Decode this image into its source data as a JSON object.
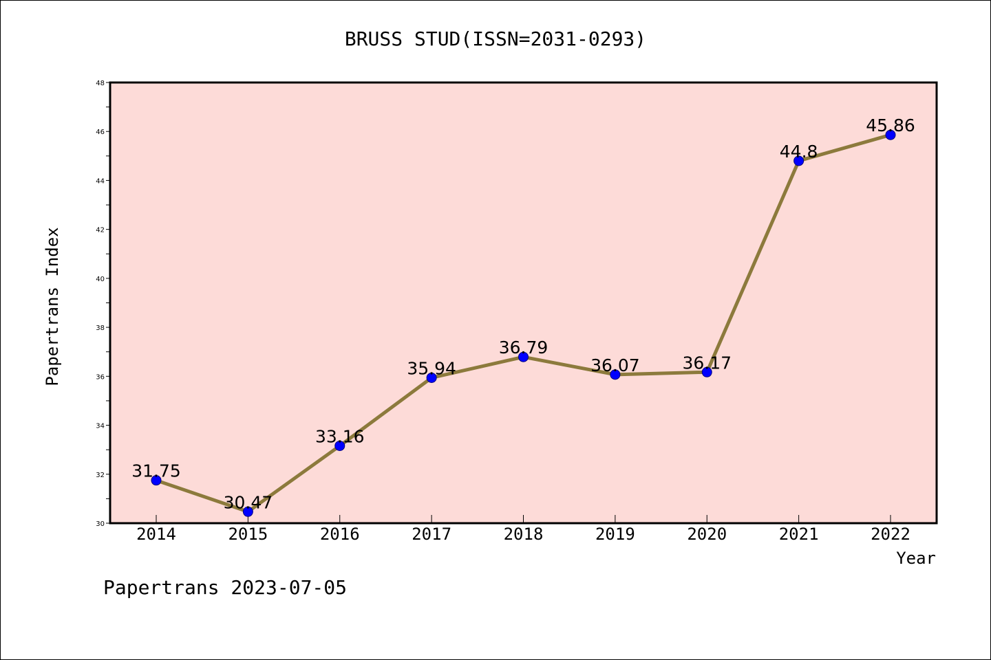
{
  "chart_data": {
    "type": "line",
    "title": "BRUSS STUD(ISSN=2031-0293)",
    "xlabel": "Year",
    "ylabel": "Papertrans Index",
    "categories": [
      "2014",
      "2015",
      "2016",
      "2017",
      "2018",
      "2019",
      "2020",
      "2021",
      "2022"
    ],
    "values": [
      31.75,
      30.47,
      33.16,
      35.94,
      36.79,
      36.07,
      36.17,
      44.8,
      45.86
    ],
    "data_labels": [
      "31.75",
      "30.47",
      "33.16",
      "35.94",
      "36.79",
      "36.07",
      "36.17",
      "44.8",
      "45.86"
    ],
    "ylim": [
      30,
      48
    ],
    "yticks": [
      30,
      32,
      34,
      36,
      38,
      40,
      42,
      44,
      46,
      48
    ],
    "ytick_labels": [
      "30",
      "32",
      "34",
      "36",
      "38",
      "40",
      "42",
      "44",
      "46",
      "48"
    ],
    "grid": false,
    "legend": "none",
    "colors": {
      "plot_background": "#fddbd8",
      "line": "#8c7a3c",
      "marker": "#0000ff",
      "marker_edge": "#000080",
      "axis": "#000000"
    }
  },
  "footer": {
    "watermark": "Papertrans 2023-07-05"
  }
}
